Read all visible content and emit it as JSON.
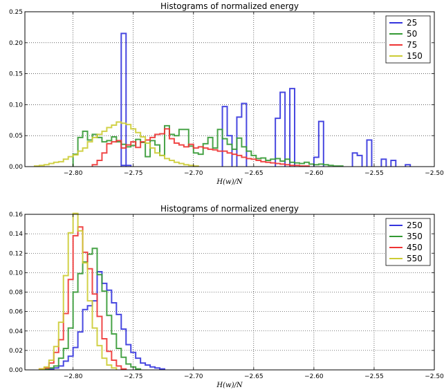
{
  "chart_data": [
    {
      "type": "histogram",
      "title": "Histograms of normalized energy",
      "xlabel": "H(w)/N",
      "ylabel": "",
      "xlim": [
        -2.84,
        -2.5
      ],
      "ylim": [
        0,
        0.25
      ],
      "xticks": [
        -2.8,
        -2.75,
        -2.7,
        -2.65,
        -2.6,
        -2.55,
        -2.5
      ],
      "xtick_labels": [
        "−2.80",
        "−2.75",
        "−2.70",
        "−2.65",
        "−2.60",
        "−2.55",
        "−2.50"
      ],
      "yticks": [
        0.0,
        0.05,
        0.1,
        0.15,
        0.2,
        0.25
      ],
      "ytick_labels": [
        "0.00",
        "0.05",
        "0.10",
        "0.15",
        "0.20",
        "0.25"
      ],
      "grid": true,
      "legend": "top-right",
      "bin_width": 0.004,
      "series": [
        {
          "name": "25",
          "color": "#3333dd",
          "bins": [
            [
              -2.76,
              0.002
            ],
            [
              -2.76,
              0.215
            ],
            [
              -2.756,
              0.002
            ],
            [
              -2.676,
              0.097
            ],
            [
              -2.672,
              0.05
            ],
            [
              -2.664,
              0.08
            ],
            [
              -2.66,
              0.102
            ],
            [
              -2.632,
              0.078
            ],
            [
              -2.628,
              0.12
            ],
            [
              -2.62,
              0.126
            ],
            [
              -2.6,
              0.015
            ],
            [
              -2.596,
              0.073
            ],
            [
              -2.568,
              0.022
            ],
            [
              -2.564,
              0.018
            ],
            [
              -2.556,
              0.043
            ],
            [
              -2.544,
              0.012
            ],
            [
              -2.536,
              0.01
            ],
            [
              -2.524,
              0.003
            ]
          ]
        },
        {
          "name": "50",
          "color": "#339933",
          "bins": [
            [
              -2.8,
              0.02
            ],
            [
              -2.796,
              0.047
            ],
            [
              -2.792,
              0.057
            ],
            [
              -2.788,
              0.043
            ],
            [
              -2.784,
              0.052
            ],
            [
              -2.78,
              0.047
            ],
            [
              -2.776,
              0.04
            ],
            [
              -2.772,
              0.042
            ],
            [
              -2.768,
              0.048
            ],
            [
              -2.764,
              0.04
            ],
            [
              -2.76,
              0.036
            ],
            [
              -2.756,
              0.032
            ],
            [
              -2.752,
              0.034
            ],
            [
              -2.748,
              0.044
            ],
            [
              -2.744,
              0.039
            ],
            [
              -2.74,
              0.016
            ],
            [
              -2.736,
              0.042
            ],
            [
              -2.732,
              0.035
            ],
            [
              -2.728,
              0.018
            ],
            [
              -2.724,
              0.066
            ],
            [
              -2.72,
              0.052
            ],
            [
              -2.716,
              0.05
            ],
            [
              -2.712,
              0.06
            ],
            [
              -2.708,
              0.06
            ],
            [
              -2.704,
              0.033
            ],
            [
              -2.7,
              0.022
            ],
            [
              -2.696,
              0.02
            ],
            [
              -2.692,
              0.037
            ],
            [
              -2.688,
              0.047
            ],
            [
              -2.684,
              0.03
            ],
            [
              -2.68,
              0.06
            ],
            [
              -2.676,
              0.045
            ],
            [
              -2.672,
              0.036
            ],
            [
              -2.668,
              0.028
            ],
            [
              -2.664,
              0.046
            ],
            [
              -2.66,
              0.032
            ],
            [
              -2.656,
              0.025
            ],
            [
              -2.652,
              0.018
            ],
            [
              -2.648,
              0.013
            ],
            [
              -2.644,
              0.014
            ],
            [
              -2.64,
              0.01
            ],
            [
              -2.636,
              0.012
            ],
            [
              -2.632,
              0.013
            ],
            [
              -2.628,
              0.009
            ],
            [
              -2.624,
              0.012
            ],
            [
              -2.62,
              0.007
            ],
            [
              -2.616,
              0.006
            ],
            [
              -2.612,
              0.005
            ],
            [
              -2.608,
              0.007
            ],
            [
              -2.604,
              0.004
            ],
            [
              -2.6,
              0.003
            ],
            [
              -2.596,
              0.004
            ],
            [
              -2.592,
              0.003
            ],
            [
              -2.588,
              0.002
            ],
            [
              -2.584,
              0.001
            ],
            [
              -2.58,
              0.001
            ]
          ]
        },
        {
          "name": "75",
          "color": "#ee3333",
          "bins": [
            [
              -2.784,
              0.003
            ],
            [
              -2.78,
              0.01
            ],
            [
              -2.776,
              0.022
            ],
            [
              -2.772,
              0.037
            ],
            [
              -2.768,
              0.04
            ],
            [
              -2.764,
              0.042
            ],
            [
              -2.76,
              0.03
            ],
            [
              -2.756,
              0.035
            ],
            [
              -2.752,
              0.04
            ],
            [
              -2.748,
              0.031
            ],
            [
              -2.744,
              0.04
            ],
            [
              -2.74,
              0.043
            ],
            [
              -2.736,
              0.047
            ],
            [
              -2.732,
              0.052
            ],
            [
              -2.728,
              0.053
            ],
            [
              -2.724,
              0.061
            ],
            [
              -2.72,
              0.045
            ],
            [
              -2.716,
              0.038
            ],
            [
              -2.712,
              0.035
            ],
            [
              -2.708,
              0.032
            ],
            [
              -2.704,
              0.036
            ],
            [
              -2.7,
              0.03
            ],
            [
              -2.696,
              0.032
            ],
            [
              -2.692,
              0.03
            ],
            [
              -2.688,
              0.028
            ],
            [
              -2.684,
              0.027
            ],
            [
              -2.68,
              0.025
            ],
            [
              -2.676,
              0.025
            ],
            [
              -2.672,
              0.022
            ],
            [
              -2.668,
              0.02
            ],
            [
              -2.664,
              0.018
            ],
            [
              -2.66,
              0.015
            ],
            [
              -2.656,
              0.013
            ],
            [
              -2.652,
              0.012
            ],
            [
              -2.648,
              0.01
            ],
            [
              -2.644,
              0.008
            ],
            [
              -2.64,
              0.007
            ],
            [
              -2.636,
              0.006
            ],
            [
              -2.632,
              0.005
            ],
            [
              -2.628,
              0.004
            ],
            [
              -2.624,
              0.003
            ],
            [
              -2.62,
              0.002
            ],
            [
              -2.616,
              0.002
            ],
            [
              -2.612,
              0.001
            ],
            [
              -2.608,
              0.001
            ]
          ]
        },
        {
          "name": "150",
          "color": "#cccc33",
          "bins": [
            [
              -2.832,
              0.001
            ],
            [
              -2.828,
              0.002
            ],
            [
              -2.824,
              0.003
            ],
            [
              -2.82,
              0.005
            ],
            [
              -2.816,
              0.007
            ],
            [
              -2.812,
              0.008
            ],
            [
              -2.808,
              0.012
            ],
            [
              -2.804,
              0.016
            ],
            [
              -2.8,
              0.019
            ],
            [
              -2.796,
              0.025
            ],
            [
              -2.792,
              0.03
            ],
            [
              -2.788,
              0.04
            ],
            [
              -2.784,
              0.047
            ],
            [
              -2.78,
              0.052
            ],
            [
              -2.776,
              0.057
            ],
            [
              -2.772,
              0.063
            ],
            [
              -2.768,
              0.067
            ],
            [
              -2.764,
              0.072
            ],
            [
              -2.76,
              0.07
            ],
            [
              -2.756,
              0.068
            ],
            [
              -2.752,
              0.061
            ],
            [
              -2.748,
              0.055
            ],
            [
              -2.744,
              0.048
            ],
            [
              -2.74,
              0.038
            ],
            [
              -2.736,
              0.03
            ],
            [
              -2.732,
              0.022
            ],
            [
              -2.728,
              0.018
            ],
            [
              -2.724,
              0.013
            ],
            [
              -2.72,
              0.01
            ],
            [
              -2.716,
              0.007
            ],
            [
              -2.712,
              0.005
            ],
            [
              -2.708,
              0.003
            ],
            [
              -2.704,
              0.002
            ],
            [
              -2.7,
              0.001
            ]
          ]
        }
      ]
    },
    {
      "type": "histogram",
      "title": "Histograms of normalized energy",
      "xlabel": "H(w)/N",
      "ylabel": "",
      "xlim": [
        -2.84,
        -2.5
      ],
      "ylim": [
        0,
        0.16
      ],
      "xticks": [
        -2.8,
        -2.75,
        -2.7,
        -2.65,
        -2.6,
        -2.55,
        -2.5
      ],
      "xtick_labels": [
        "−2.80",
        "−2.75",
        "−2.70",
        "−2.65",
        "−2.60",
        "−2.55",
        "−2.50"
      ],
      "yticks": [
        0.0,
        0.02,
        0.04,
        0.06,
        0.08,
        0.1,
        0.12,
        0.14,
        0.16
      ],
      "ytick_labels": [
        "0.00",
        "0.02",
        "0.04",
        "0.06",
        "0.08",
        "0.10",
        "0.12",
        "0.14",
        "0.16"
      ],
      "grid": true,
      "legend": "top-right",
      "bin_width": 0.004,
      "series": [
        {
          "name": "250",
          "color": "#3333dd",
          "bins": [
            [
              -2.82,
              0.001
            ],
            [
              -2.816,
              0.002
            ],
            [
              -2.812,
              0.004
            ],
            [
              -2.808,
              0.009
            ],
            [
              -2.804,
              0.014
            ],
            [
              -2.8,
              0.023
            ],
            [
              -2.796,
              0.039
            ],
            [
              -2.792,
              0.062
            ],
            [
              -2.788,
              0.066
            ],
            [
              -2.784,
              0.071
            ],
            [
              -2.78,
              0.101
            ],
            [
              -2.776,
              0.089
            ],
            [
              -2.772,
              0.082
            ],
            [
              -2.768,
              0.069
            ],
            [
              -2.764,
              0.057
            ],
            [
              -2.76,
              0.042
            ],
            [
              -2.756,
              0.026
            ],
            [
              -2.752,
              0.018
            ],
            [
              -2.748,
              0.012
            ],
            [
              -2.744,
              0.007
            ],
            [
              -2.74,
              0.005
            ],
            [
              -2.736,
              0.003
            ],
            [
              -2.732,
              0.002
            ],
            [
              -2.728,
              0.001
            ]
          ]
        },
        {
          "name": "350",
          "color": "#339933",
          "bins": [
            [
              -2.824,
              0.001
            ],
            [
              -2.82,
              0.002
            ],
            [
              -2.816,
              0.004
            ],
            [
              -2.812,
              0.012
            ],
            [
              -2.808,
              0.022
            ],
            [
              -2.804,
              0.043
            ],
            [
              -2.8,
              0.08
            ],
            [
              -2.796,
              0.099
            ],
            [
              -2.792,
              0.111
            ],
            [
              -2.788,
              0.119
            ],
            [
              -2.784,
              0.125
            ],
            [
              -2.78,
              0.098
            ],
            [
              -2.776,
              0.081
            ],
            [
              -2.772,
              0.056
            ],
            [
              -2.768,
              0.037
            ],
            [
              -2.764,
              0.022
            ],
            [
              -2.76,
              0.013
            ],
            [
              -2.756,
              0.006
            ],
            [
              -2.752,
              0.003
            ],
            [
              -2.748,
              0.001
            ]
          ]
        },
        {
          "name": "450",
          "color": "#ee3333",
          "bins": [
            [
              -2.828,
              0.001
            ],
            [
              -2.824,
              0.002
            ],
            [
              -2.82,
              0.007
            ],
            [
              -2.816,
              0.018
            ],
            [
              -2.812,
              0.031
            ],
            [
              -2.808,
              0.058
            ],
            [
              -2.804,
              0.093
            ],
            [
              -2.8,
              0.138
            ],
            [
              -2.796,
              0.147
            ],
            [
              -2.792,
              0.121
            ],
            [
              -2.788,
              0.104
            ],
            [
              -2.784,
              0.078
            ],
            [
              -2.78,
              0.055
            ],
            [
              -2.776,
              0.032
            ],
            [
              -2.772,
              0.019
            ],
            [
              -2.768,
              0.01
            ],
            [
              -2.764,
              0.004
            ],
            [
              -2.76,
              0.001
            ]
          ]
        },
        {
          "name": "550",
          "color": "#cccc33",
          "bins": [
            [
              -2.828,
              0.001
            ],
            [
              -2.824,
              0.003
            ],
            [
              -2.82,
              0.01
            ],
            [
              -2.816,
              0.024
            ],
            [
              -2.812,
              0.049
            ],
            [
              -2.808,
              0.097
            ],
            [
              -2.804,
              0.141
            ],
            [
              -2.8,
              0.161
            ],
            [
              -2.796,
              0.143
            ],
            [
              -2.792,
              0.11
            ],
            [
              -2.788,
              0.071
            ],
            [
              -2.784,
              0.043
            ],
            [
              -2.78,
              0.025
            ],
            [
              -2.776,
              0.012
            ],
            [
              -2.772,
              0.005
            ],
            [
              -2.768,
              0.002
            ]
          ]
        }
      ]
    }
  ]
}
